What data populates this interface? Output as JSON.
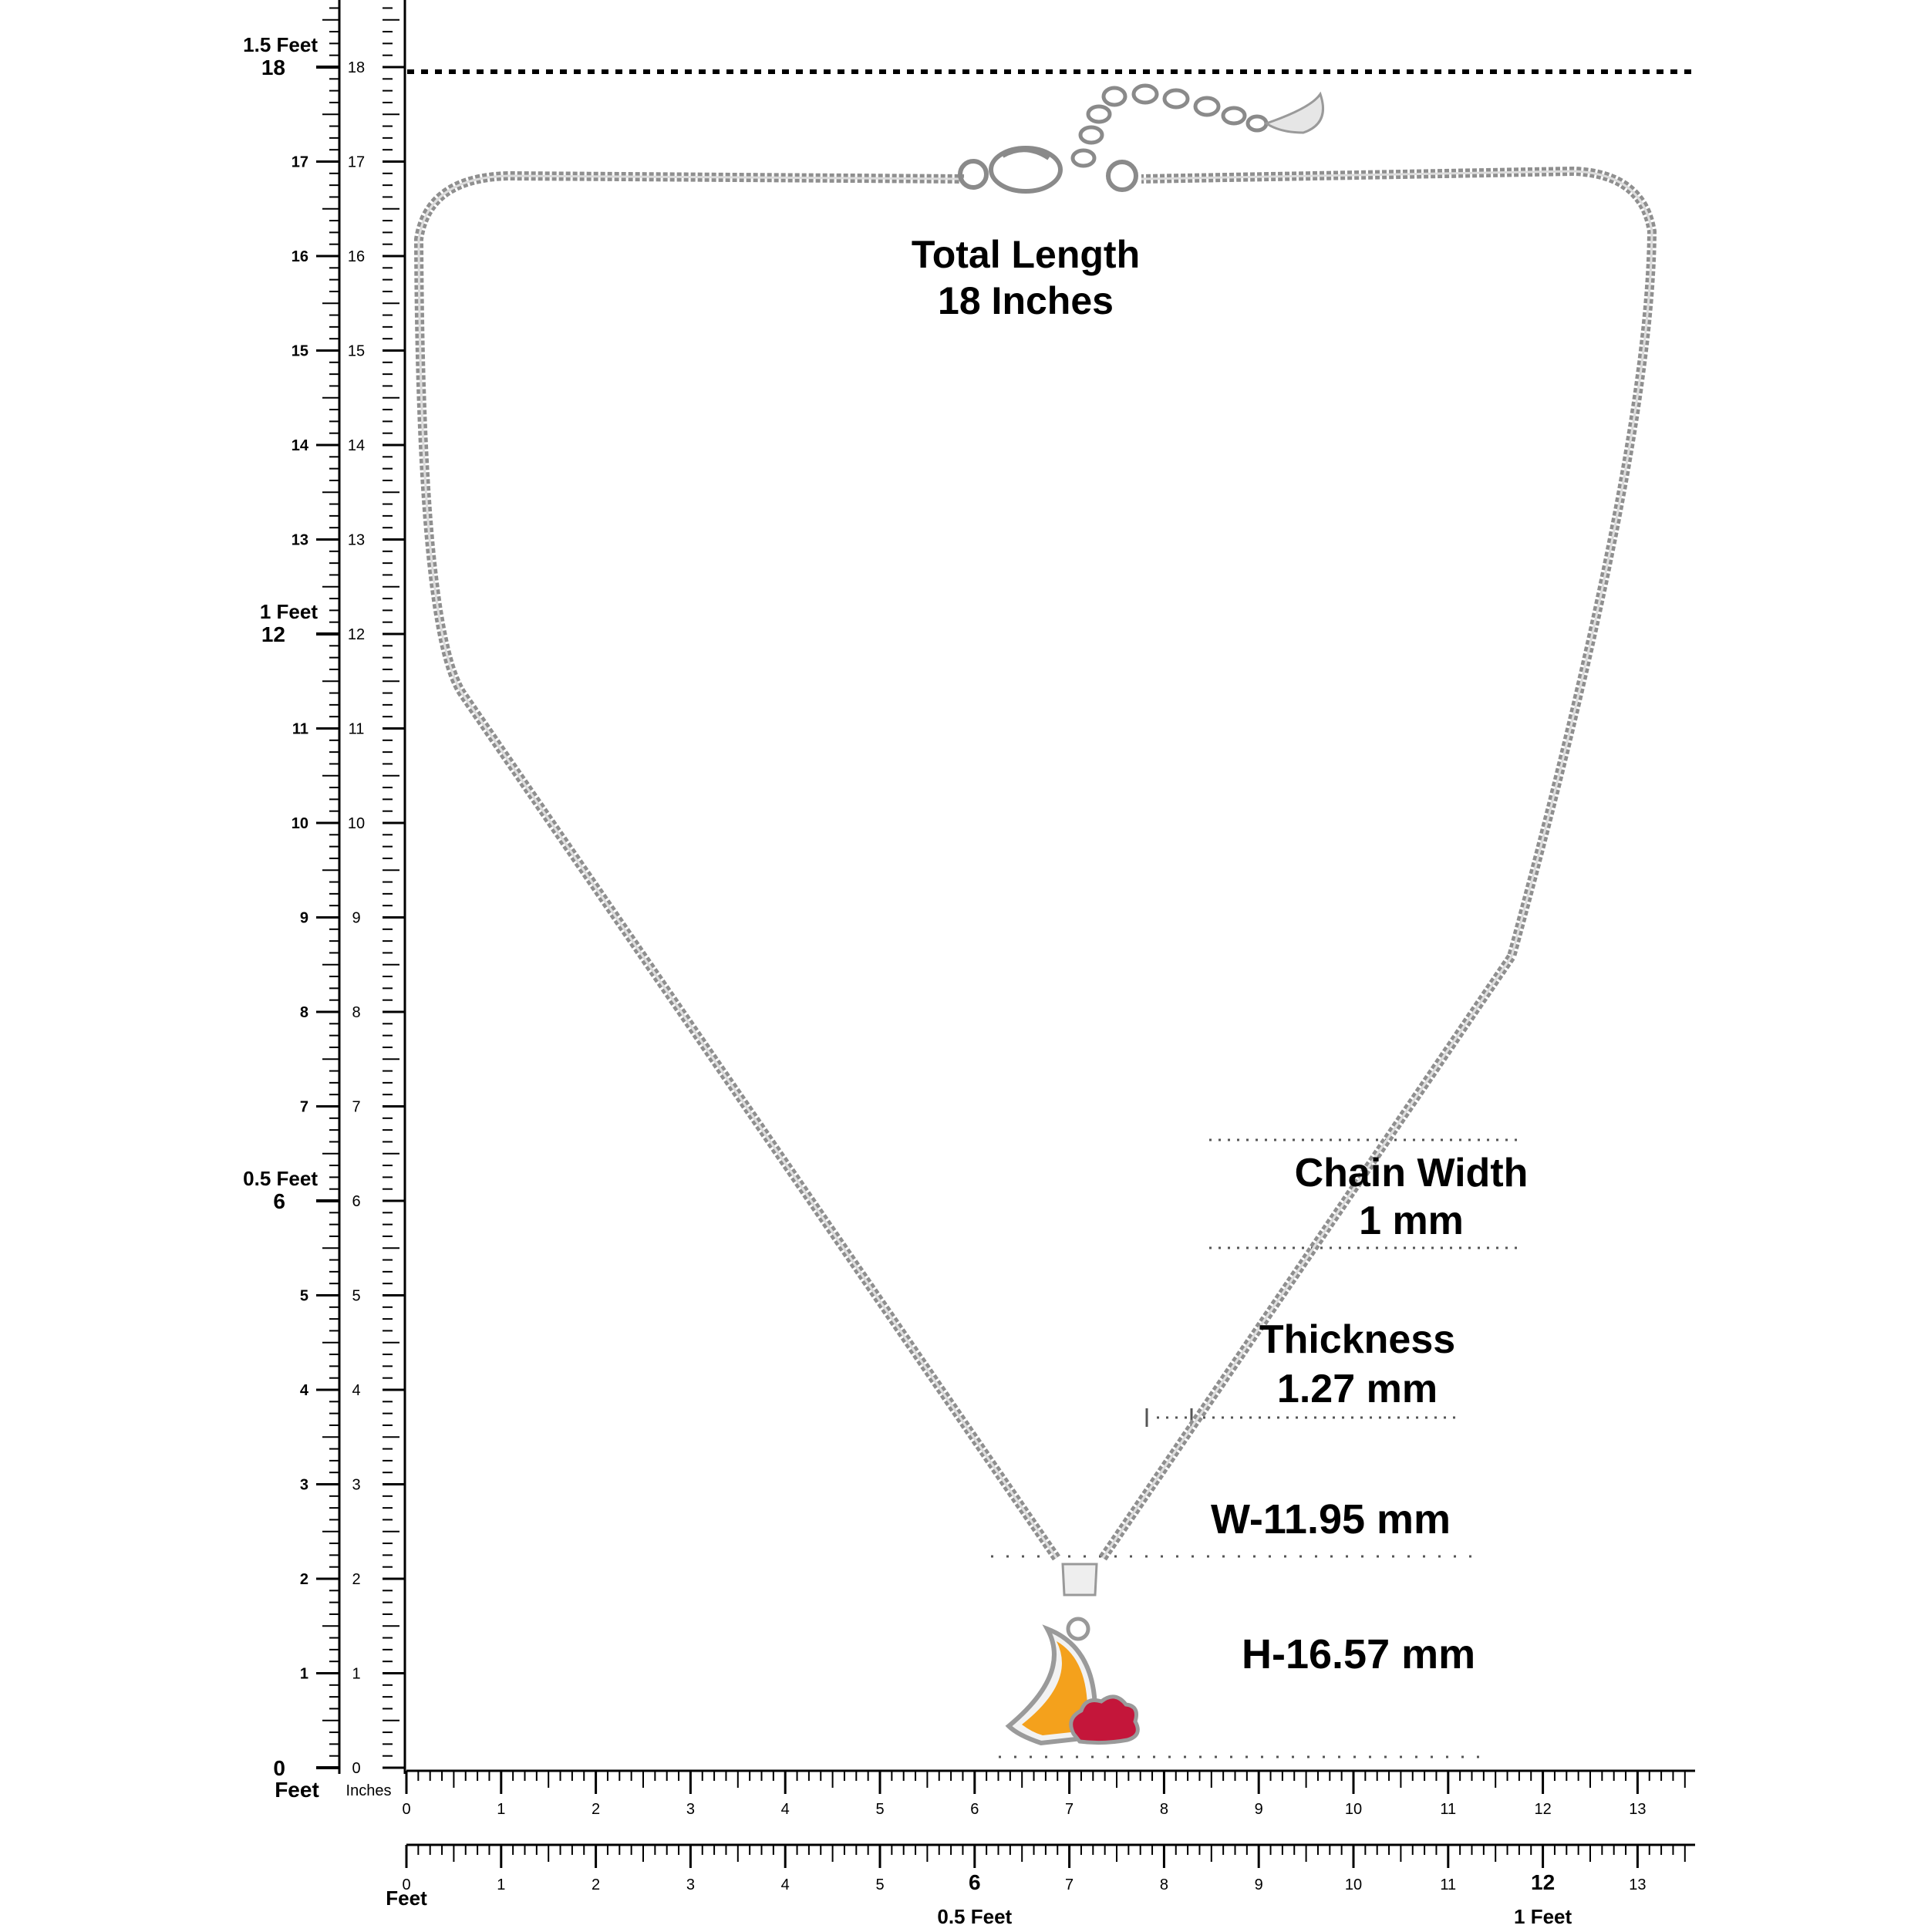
{
  "annotations": {
    "total_length": {
      "title": "Total Length",
      "value": "18 Inches"
    },
    "chain_width": {
      "title": "Chain Width",
      "value": "1 mm"
    },
    "thickness": {
      "title": "Thickness",
      "value": "1.27 mm"
    },
    "pendant_width": "W-11.95 mm",
    "pendant_height": "H-16.57 mm"
  },
  "vertical_ruler": {
    "feet_unit_label": "Feet",
    "inches_unit_label": "Inches",
    "inch_min": 0,
    "inch_max": 18,
    "feet_marks": [
      {
        "inch": 6,
        "label": "0.5 Feet"
      },
      {
        "inch": 12,
        "label": "1 Feet"
      },
      {
        "inch": 18,
        "label": "1.5 Feet"
      }
    ]
  },
  "horizontal_ruler": {
    "inch_min": 0,
    "inch_max": 13,
    "feet_unit_label": "Feet",
    "feet_marks": [
      {
        "inch": 6,
        "label": "0.5 Feet"
      },
      {
        "inch": 12,
        "label": "1 Feet"
      }
    ]
  },
  "colors": {
    "chain": "#8f8f8f",
    "chain_highlight": "#dcdcdc",
    "pendant_moon": "#f4a11c",
    "pendant_cloud": "#c4163a",
    "pendant_rim": "#9a9a9a",
    "ruler": "#000000"
  }
}
